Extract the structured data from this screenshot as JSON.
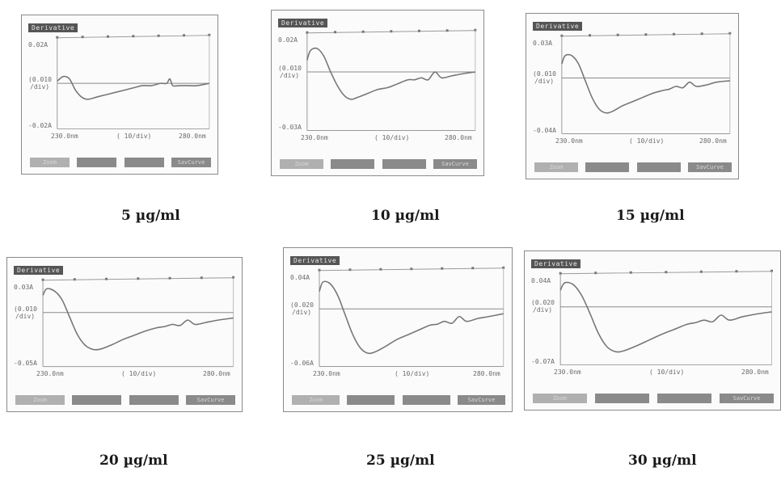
{
  "colors": {
    "trace": "#777777",
    "tag_bg": "#555555",
    "button": "#8a8a8a"
  },
  "common": {
    "tag": "Derivative",
    "x_start": "230.0nm",
    "x_end": "280.0nm",
    "x_scale": "( 10/div)",
    "buttons": [
      "Zoom",
      "",
      "",
      "SavCurve"
    ]
  },
  "chart_data": [
    {
      "type": "line",
      "caption": "5 µg/ml",
      "y_top": "0.02A",
      "y_mid": "(0.010",
      "y_mid2": "/div)",
      "y_bottom": "-0.02A",
      "xlim": [
        230,
        280
      ],
      "ylim": [
        -0.02,
        0.02
      ],
      "series": [
        {
          "x": [
            230,
            232,
            234,
            236,
            238,
            240,
            243,
            246,
            249,
            252,
            255,
            258,
            261,
            264,
            266,
            267,
            268,
            270,
            273,
            276,
            280
          ],
          "y": [
            0.001,
            0.003,
            0.002,
            -0.003,
            -0.006,
            -0.007,
            -0.006,
            -0.005,
            -0.004,
            -0.003,
            -0.002,
            -0.001,
            -0.001,
            0.0,
            0.0,
            0.002,
            -0.001,
            -0.001,
            -0.001,
            -0.001,
            0.0
          ]
        }
      ]
    },
    {
      "type": "line",
      "caption": "10 µg/ml",
      "y_top": "0.02A",
      "y_mid": "(0.010",
      "y_mid2": "/div)",
      "y_bottom": "-0.03A",
      "xlim": [
        230,
        280
      ],
      "ylim": [
        -0.03,
        0.02
      ],
      "series": [
        {
          "x": [
            230,
            231,
            233,
            235,
            237,
            239,
            241,
            243,
            245,
            248,
            251,
            254,
            257,
            260,
            262,
            264,
            266,
            268,
            270,
            273,
            276,
            280
          ],
          "y": [
            0.006,
            0.011,
            0.012,
            0.008,
            0.0,
            -0.007,
            -0.012,
            -0.014,
            -0.013,
            -0.011,
            -0.009,
            -0.008,
            -0.006,
            -0.004,
            -0.004,
            -0.003,
            -0.004,
            0.0,
            -0.003,
            -0.002,
            -0.001,
            0.0
          ]
        }
      ]
    },
    {
      "type": "line",
      "caption": "15 µg/ml",
      "y_top": "0.03A",
      "y_mid": "(0.010",
      "y_mid2": "/div)",
      "y_bottom": "-0.04A",
      "xlim": [
        230,
        280
      ],
      "ylim": [
        -0.04,
        0.03
      ],
      "series": [
        {
          "x": [
            230,
            231,
            233,
            235,
            237,
            239,
            241,
            243,
            245,
            248,
            251,
            254,
            257,
            260,
            262,
            264,
            266,
            268,
            270,
            273,
            276,
            280
          ],
          "y": [
            0.01,
            0.016,
            0.016,
            0.01,
            -0.002,
            -0.014,
            -0.022,
            -0.025,
            -0.024,
            -0.02,
            -0.017,
            -0.014,
            -0.011,
            -0.009,
            -0.008,
            -0.006,
            -0.007,
            -0.003,
            -0.006,
            -0.005,
            -0.003,
            -0.002
          ]
        }
      ]
    },
    {
      "type": "line",
      "caption": "20 µg/ml",
      "y_top": "0.03A",
      "y_mid": "(0.010",
      "y_mid2": "/div)",
      "y_bottom": "-0.05A",
      "xlim": [
        230,
        280
      ],
      "ylim": [
        -0.05,
        0.03
      ],
      "series": [
        {
          "x": [
            230,
            231,
            233,
            235,
            237,
            239,
            241,
            243,
            245,
            248,
            251,
            254,
            257,
            260,
            262,
            264,
            266,
            268,
            270,
            273,
            276,
            280
          ],
          "y": [
            0.016,
            0.022,
            0.02,
            0.012,
            -0.004,
            -0.02,
            -0.03,
            -0.034,
            -0.034,
            -0.03,
            -0.025,
            -0.021,
            -0.017,
            -0.014,
            -0.013,
            -0.011,
            -0.012,
            -0.007,
            -0.011,
            -0.009,
            -0.007,
            -0.005
          ]
        }
      ]
    },
    {
      "type": "line",
      "caption": "25 µg/ml",
      "y_top": "0.04A",
      "y_mid": "(0.020",
      "y_mid2": "/div)",
      "y_bottom": "-0.06A",
      "xlim": [
        230,
        280
      ],
      "ylim": [
        -0.06,
        0.04
      ],
      "series": [
        {
          "x": [
            230,
            231,
            233,
            235,
            237,
            239,
            241,
            243,
            245,
            248,
            251,
            254,
            257,
            260,
            262,
            264,
            266,
            268,
            270,
            273,
            276,
            280
          ],
          "y": [
            0.018,
            0.028,
            0.026,
            0.014,
            -0.006,
            -0.026,
            -0.04,
            -0.046,
            -0.045,
            -0.039,
            -0.032,
            -0.027,
            -0.022,
            -0.017,
            -0.016,
            -0.013,
            -0.015,
            -0.008,
            -0.013,
            -0.01,
            -0.008,
            -0.005
          ]
        }
      ]
    },
    {
      "type": "line",
      "caption": "30 µg/ml",
      "y_top": "0.04A",
      "y_mid": "(0.020",
      "y_mid2": "/div)",
      "y_bottom": "-0.07A",
      "xlim": [
        230,
        280
      ],
      "ylim": [
        -0.07,
        0.04
      ],
      "series": [
        {
          "x": [
            230,
            231,
            233,
            235,
            237,
            239,
            241,
            243,
            245,
            248,
            251,
            254,
            257,
            260,
            262,
            264,
            266,
            268,
            270,
            273,
            276,
            280
          ],
          "y": [
            0.02,
            0.029,
            0.027,
            0.014,
            -0.008,
            -0.032,
            -0.048,
            -0.054,
            -0.053,
            -0.047,
            -0.04,
            -0.033,
            -0.027,
            -0.021,
            -0.019,
            -0.016,
            -0.018,
            -0.01,
            -0.016,
            -0.012,
            -0.009,
            -0.006
          ]
        }
      ]
    }
  ]
}
